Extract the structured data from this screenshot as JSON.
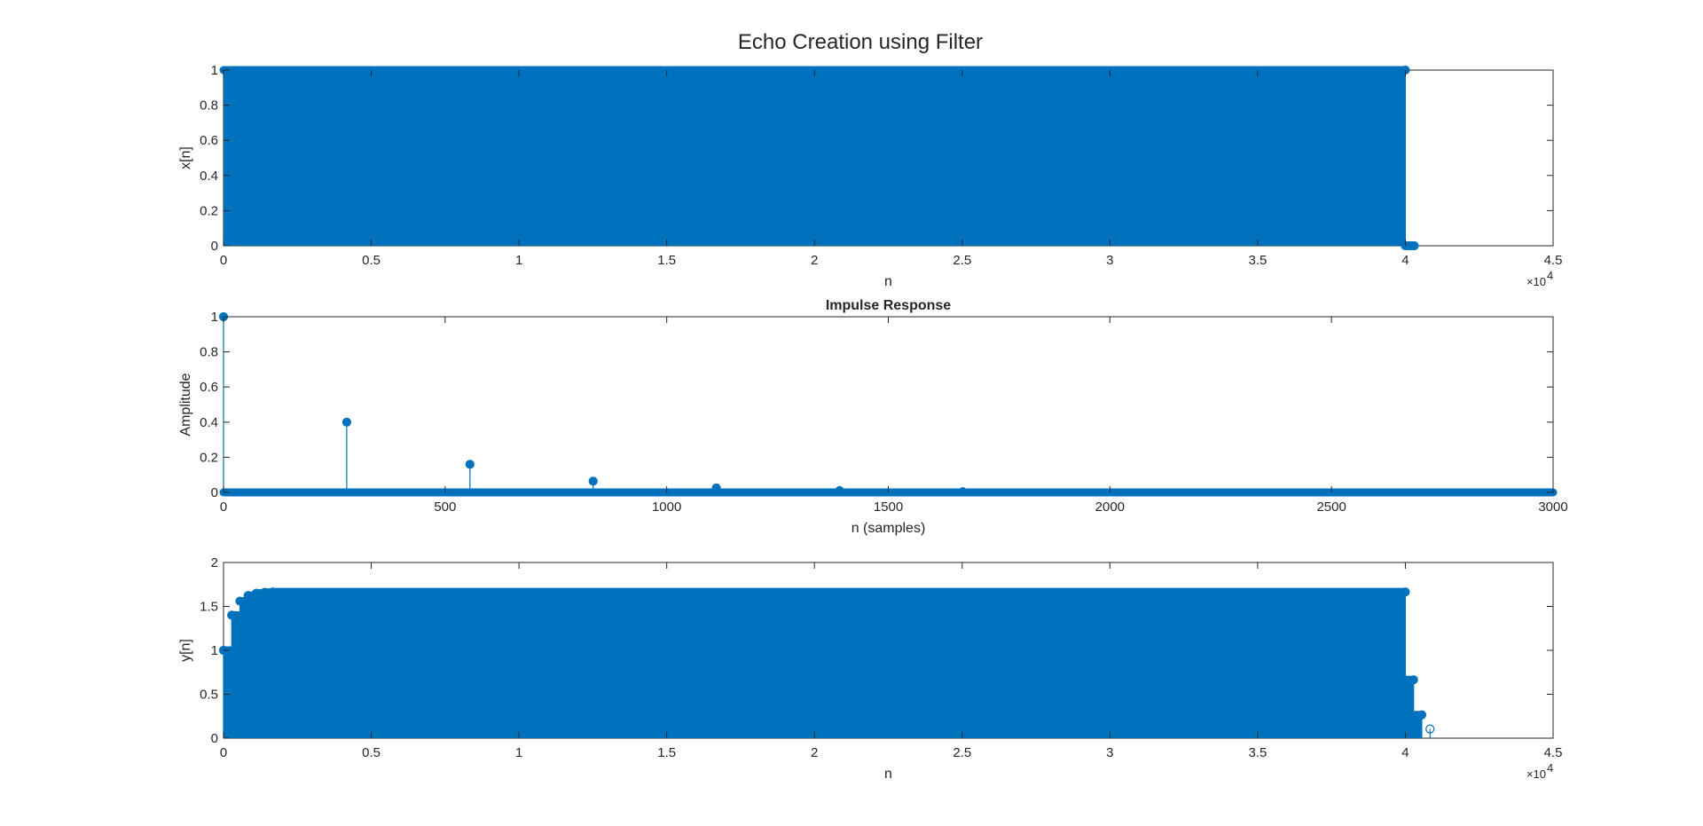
{
  "figure": {
    "title": "Echo Creation using Filter",
    "color": "#0072BD",
    "axis_color": "#262626"
  },
  "chart_data": [
    {
      "type": "stem",
      "title": "",
      "xlabel": "n",
      "ylabel": "x[n]",
      "xlim": [
        0,
        45000
      ],
      "ylim": [
        0,
        1
      ],
      "xticks": [
        0,
        5000,
        10000,
        15000,
        20000,
        25000,
        30000,
        35000,
        40000,
        45000
      ],
      "xtick_labels": [
        "0",
        "0.5",
        "1",
        "1.5",
        "2",
        "2.5",
        "3",
        "3.5",
        "4",
        "4.5"
      ],
      "x_exponent_label": "×10",
      "x_exponent_power": "4",
      "yticks": [
        0,
        0.2,
        0.4,
        0.6,
        0.8,
        1
      ],
      "ytick_labels": [
        "0",
        "0.2",
        "0.4",
        "0.6",
        "0.8",
        "1"
      ],
      "grid": false,
      "series": [
        {
          "fill_segments": [
            {
              "x_start": 0,
              "x_end": 40000,
              "y": 1
            }
          ],
          "points": [
            {
              "x": 40000,
              "y": 1
            },
            {
              "x": 40000,
              "y": 0
            },
            {
              "x": 40100,
              "y": 0
            },
            {
              "x": 40200,
              "y": 0
            },
            {
              "x": 40300,
              "y": 0
            }
          ]
        }
      ]
    },
    {
      "type": "stem",
      "title": "Impulse Response",
      "xlabel": "n (samples)",
      "ylabel": "Amplitude",
      "xlim": [
        0,
        3000
      ],
      "ylim": [
        0,
        1
      ],
      "xticks": [
        0,
        500,
        1000,
        1500,
        2000,
        2500,
        3000
      ],
      "xtick_labels": [
        "0",
        "500",
        "1000",
        "1500",
        "2000",
        "2500",
        "3000"
      ],
      "yticks": [
        0,
        0.2,
        0.4,
        0.6,
        0.8,
        1
      ],
      "ytick_labels": [
        "0",
        "0.2",
        "0.4",
        "0.6",
        "0.8",
        "1"
      ],
      "grid": false,
      "baseline": {
        "x_start": 0,
        "x_end": 3000,
        "y": 0
      },
      "series": [
        {
          "points": [
            {
              "x": 0,
              "y": 1
            },
            {
              "x": 278,
              "y": 0.4
            },
            {
              "x": 556,
              "y": 0.16
            },
            {
              "x": 834,
              "y": 0.064
            },
            {
              "x": 1112,
              "y": 0.0256
            },
            {
              "x": 1390,
              "y": 0.0102
            },
            {
              "x": 1668,
              "y": 0.0041
            }
          ]
        }
      ]
    },
    {
      "type": "stem",
      "title": "",
      "xlabel": "n",
      "ylabel": "y[n]",
      "xlim": [
        0,
        45000
      ],
      "ylim": [
        0,
        2
      ],
      "xticks": [
        0,
        5000,
        10000,
        15000,
        20000,
        25000,
        30000,
        35000,
        40000,
        45000
      ],
      "xtick_labels": [
        "0",
        "0.5",
        "1",
        "1.5",
        "2",
        "2.5",
        "3",
        "3.5",
        "4",
        "4.5"
      ],
      "x_exponent_label": "×10",
      "x_exponent_power": "4",
      "yticks": [
        0,
        0.5,
        1,
        1.5,
        2
      ],
      "ytick_labels": [
        "0",
        "0.5",
        "1",
        "1.5",
        "2"
      ],
      "grid": false,
      "series": [
        {
          "fill_segments": [
            {
              "x_start": 0,
              "x_end": 278,
              "y": 1.0
            },
            {
              "x_start": 278,
              "x_end": 556,
              "y": 1.4
            },
            {
              "x_start": 556,
              "x_end": 834,
              "y": 1.56
            },
            {
              "x_start": 834,
              "x_end": 1112,
              "y": 1.624
            },
            {
              "x_start": 1112,
              "x_end": 1390,
              "y": 1.65
            },
            {
              "x_start": 1390,
              "x_end": 1668,
              "y": 1.66
            },
            {
              "x_start": 1668,
              "x_end": 40000,
              "y": 1.665
            },
            {
              "x_start": 40000,
              "x_end": 40278,
              "y": 0.665
            },
            {
              "x_start": 40278,
              "x_end": 40556,
              "y": 0.265
            }
          ],
          "points": [
            {
              "x": 0,
              "y": 1.0
            },
            {
              "x": 278,
              "y": 1.4
            },
            {
              "x": 556,
              "y": 1.56
            },
            {
              "x": 834,
              "y": 1.624
            },
            {
              "x": 1112,
              "y": 1.65
            },
            {
              "x": 1390,
              "y": 1.66
            },
            {
              "x": 1668,
              "y": 1.665
            },
            {
              "x": 40000,
              "y": 1.665
            },
            {
              "x": 40278,
              "y": 0.665
            },
            {
              "x": 40556,
              "y": 0.265
            },
            {
              "x": 40834,
              "y": 0.105
            }
          ]
        }
      ]
    }
  ]
}
